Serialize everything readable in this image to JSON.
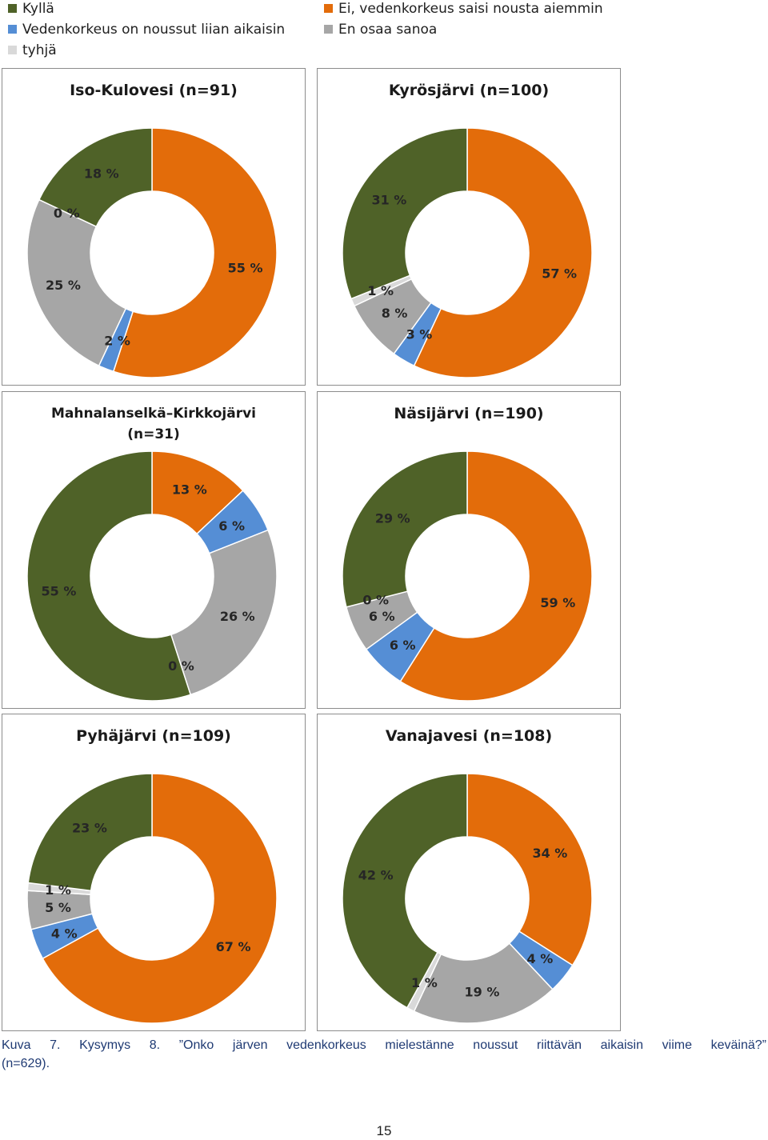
{
  "legend": {
    "items": [
      {
        "key": "kylla",
        "label": "Kyllä",
        "color": "#4F6228"
      },
      {
        "key": "ei",
        "label": "Ei, vedenkorkeus saisi nousta aiemmin",
        "color": "#E36C0A"
      },
      {
        "key": "liian",
        "label": "Vedenkorkeus on noussut liian aikaisin",
        "color": "#558ED5"
      },
      {
        "key": "eos",
        "label": "En osaa sanoa",
        "color": "#A6A6A6"
      },
      {
        "key": "tyhja",
        "label": "tyhjä",
        "color": "#D9D9D9"
      }
    ]
  },
  "chart_data": [
    {
      "type": "pie",
      "donut": true,
      "title": "Iso-Kulovesi (n=91)",
      "order": [
        "ei",
        "liian",
        "eos",
        "tyhja",
        "kylla"
      ],
      "values": [
        55,
        2,
        25,
        0,
        18
      ],
      "labels": [
        "55 %",
        "2 %",
        "25 %",
        "0 %",
        "18 %"
      ]
    },
    {
      "type": "pie",
      "donut": true,
      "title": "Kyrösjärvi (n=100)",
      "order": [
        "ei",
        "liian",
        "eos",
        "tyhja",
        "kylla"
      ],
      "values": [
        57,
        3,
        8,
        1,
        31
      ],
      "labels": [
        "57 %",
        "3 %",
        "8 %",
        "1 %",
        "31 %"
      ]
    },
    {
      "type": "pie",
      "donut": true,
      "title": "Mahnalanselkä–Kirkkojärvi",
      "title2": "(n=31)",
      "order": [
        "ei",
        "liian",
        "eos",
        "tyhja",
        "kylla"
      ],
      "values": [
        13,
        6,
        26,
        0,
        55
      ],
      "labels": [
        "13 %",
        "6 %",
        "26 %",
        "0 %",
        "55 %"
      ]
    },
    {
      "type": "pie",
      "donut": true,
      "title": "Näsijärvi (n=190)",
      "order": [
        "ei",
        "liian",
        "eos",
        "tyhja",
        "kylla"
      ],
      "values": [
        59,
        6,
        6,
        0,
        29
      ],
      "labels": [
        "59 %",
        "6 %",
        "6 %",
        "0 %",
        "29 %"
      ]
    },
    {
      "type": "pie",
      "donut": true,
      "title": "Pyhäjärvi (n=109)",
      "order": [
        "ei",
        "liian",
        "eos",
        "tyhja",
        "kylla"
      ],
      "values": [
        67,
        4,
        5,
        1,
        23
      ],
      "labels": [
        "67 %",
        "4 %",
        "5 %",
        "1 %",
        "23 %"
      ]
    },
    {
      "type": "pie",
      "donut": true,
      "title": "Vanajavesi (n=108)",
      "order": [
        "ei",
        "liian",
        "eos",
        "tyhja",
        "kylla"
      ],
      "values": [
        34,
        4,
        19,
        1,
        42
      ],
      "labels": [
        "34 %",
        "4 %",
        "19 %",
        "1 %",
        "42 %"
      ]
    }
  ],
  "caption": {
    "line1": "Kuva 7. Kysymys 8. ”Onko järven vedenkorkeus mielestänne noussut riittävän aikaisin viime keväinä?”",
    "line2": "(n=629)."
  },
  "page_number": "15"
}
